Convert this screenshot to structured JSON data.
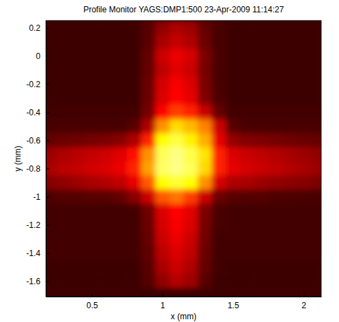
{
  "chart_data": {
    "type": "heatmap",
    "title": "Profile Monitor YAGS:DMP1:500 23-Apr-2009 11:14:27",
    "x_label": "x (mm)",
    "y_label": "y (mm)",
    "xlim": [
      0.175,
      2.125
    ],
    "ylim": [
      -1.71,
      0.25
    ],
    "xticks": [
      0.5,
      1,
      1.5,
      2
    ],
    "yticks": [
      0.2,
      0,
      -0.2,
      -0.4,
      -0.6,
      -0.8,
      -1,
      -1.2,
      -1.4,
      -1.6
    ],
    "x": [
      0.2,
      0.3,
      0.4,
      0.5,
      0.6,
      0.7,
      0.8,
      0.9,
      1.0,
      1.1,
      1.2,
      1.3,
      1.4,
      1.5,
      1.6,
      1.7,
      1.8,
      1.9,
      2.0,
      2.1
    ],
    "y": [
      0.2,
      0.1,
      0,
      -0.1,
      -0.2,
      -0.3,
      -0.4,
      -0.5,
      -0.6,
      -0.7,
      -0.8,
      -0.9,
      -1.0,
      -1.1,
      -1.2,
      -1.3,
      -1.4,
      -1.5,
      -1.6
    ],
    "values": [
      [
        0.05,
        0.05,
        0.05,
        0.05,
        0.05,
        0.05,
        0.05,
        0.1,
        0.2,
        0.25,
        0.22,
        0.12,
        0.07,
        0.05,
        0.05,
        0.05,
        0.05,
        0.05,
        0.05,
        0.05
      ],
      [
        0.05,
        0.05,
        0.05,
        0.05,
        0.05,
        0.05,
        0.05,
        0.1,
        0.24,
        0.29,
        0.25,
        0.13,
        0.07,
        0.05,
        0.05,
        0.05,
        0.05,
        0.05,
        0.05,
        0.05
      ],
      [
        0.05,
        0.05,
        0.05,
        0.05,
        0.05,
        0.05,
        0.05,
        0.12,
        0.3,
        0.36,
        0.32,
        0.16,
        0.07,
        0.05,
        0.05,
        0.05,
        0.05,
        0.05,
        0.05,
        0.05
      ],
      [
        0.05,
        0.05,
        0.05,
        0.05,
        0.05,
        0.05,
        0.05,
        0.12,
        0.28,
        0.34,
        0.3,
        0.15,
        0.07,
        0.05,
        0.05,
        0.05,
        0.05,
        0.05,
        0.05,
        0.05
      ],
      [
        0.05,
        0.05,
        0.05,
        0.05,
        0.05,
        0.05,
        0.05,
        0.13,
        0.32,
        0.38,
        0.33,
        0.16,
        0.07,
        0.05,
        0.05,
        0.05,
        0.05,
        0.05,
        0.05,
        0.05
      ],
      [
        0.05,
        0.05,
        0.05,
        0.05,
        0.05,
        0.05,
        0.05,
        0.13,
        0.33,
        0.4,
        0.35,
        0.17,
        0.08,
        0.05,
        0.05,
        0.05,
        0.05,
        0.05,
        0.05,
        0.05
      ],
      [
        0.06,
        0.06,
        0.06,
        0.06,
        0.06,
        0.06,
        0.06,
        0.15,
        0.4,
        0.5,
        0.45,
        0.3,
        0.12,
        0.06,
        0.06,
        0.06,
        0.06,
        0.06,
        0.06,
        0.06
      ],
      [
        0.07,
        0.07,
        0.07,
        0.07,
        0.07,
        0.07,
        0.1,
        0.25,
        0.65,
        0.78,
        0.72,
        0.62,
        0.3,
        0.1,
        0.07,
        0.07,
        0.07,
        0.07,
        0.07,
        0.07
      ],
      [
        0.12,
        0.13,
        0.14,
        0.15,
        0.16,
        0.18,
        0.25,
        0.45,
        0.85,
        0.92,
        0.82,
        0.7,
        0.35,
        0.2,
        0.17,
        0.16,
        0.15,
        0.14,
        0.13,
        0.12
      ],
      [
        0.22,
        0.25,
        0.27,
        0.29,
        0.31,
        0.34,
        0.42,
        0.65,
        0.95,
        1.0,
        0.93,
        0.8,
        0.45,
        0.33,
        0.3,
        0.28,
        0.26,
        0.24,
        0.22,
        0.2
      ],
      [
        0.24,
        0.27,
        0.29,
        0.31,
        0.33,
        0.36,
        0.45,
        0.68,
        0.96,
        1.0,
        0.95,
        0.78,
        0.45,
        0.35,
        0.32,
        0.3,
        0.28,
        0.26,
        0.24,
        0.22
      ],
      [
        0.18,
        0.2,
        0.22,
        0.24,
        0.26,
        0.28,
        0.35,
        0.55,
        0.85,
        0.9,
        0.85,
        0.65,
        0.32,
        0.25,
        0.24,
        0.22,
        0.2,
        0.19,
        0.18,
        0.16
      ],
      [
        0.08,
        0.09,
        0.09,
        0.1,
        0.1,
        0.12,
        0.18,
        0.3,
        0.55,
        0.6,
        0.5,
        0.3,
        0.13,
        0.1,
        0.09,
        0.09,
        0.08,
        0.08,
        0.07,
        0.07
      ],
      [
        0.06,
        0.06,
        0.06,
        0.06,
        0.06,
        0.06,
        0.06,
        0.14,
        0.33,
        0.4,
        0.34,
        0.16,
        0.07,
        0.06,
        0.06,
        0.06,
        0.06,
        0.06,
        0.06,
        0.06
      ],
      [
        0.06,
        0.06,
        0.06,
        0.06,
        0.06,
        0.06,
        0.06,
        0.13,
        0.32,
        0.38,
        0.33,
        0.15,
        0.07,
        0.06,
        0.06,
        0.06,
        0.06,
        0.06,
        0.06,
        0.06
      ],
      [
        0.06,
        0.06,
        0.06,
        0.06,
        0.06,
        0.06,
        0.06,
        0.12,
        0.3,
        0.36,
        0.3,
        0.14,
        0.06,
        0.06,
        0.06,
        0.06,
        0.06,
        0.06,
        0.06,
        0.06
      ],
      [
        0.06,
        0.06,
        0.06,
        0.06,
        0.06,
        0.06,
        0.06,
        0.11,
        0.27,
        0.33,
        0.28,
        0.13,
        0.06,
        0.06,
        0.06,
        0.06,
        0.06,
        0.06,
        0.06,
        0.06
      ],
      [
        0.05,
        0.05,
        0.05,
        0.05,
        0.05,
        0.05,
        0.05,
        0.1,
        0.24,
        0.3,
        0.25,
        0.12,
        0.06,
        0.05,
        0.05,
        0.05,
        0.05,
        0.05,
        0.05,
        0.05
      ],
      [
        0.05,
        0.05,
        0.05,
        0.05,
        0.05,
        0.05,
        0.05,
        0.09,
        0.2,
        0.26,
        0.22,
        0.1,
        0.05,
        0.05,
        0.05,
        0.05,
        0.05,
        0.05,
        0.05,
        0.05
      ]
    ]
  }
}
